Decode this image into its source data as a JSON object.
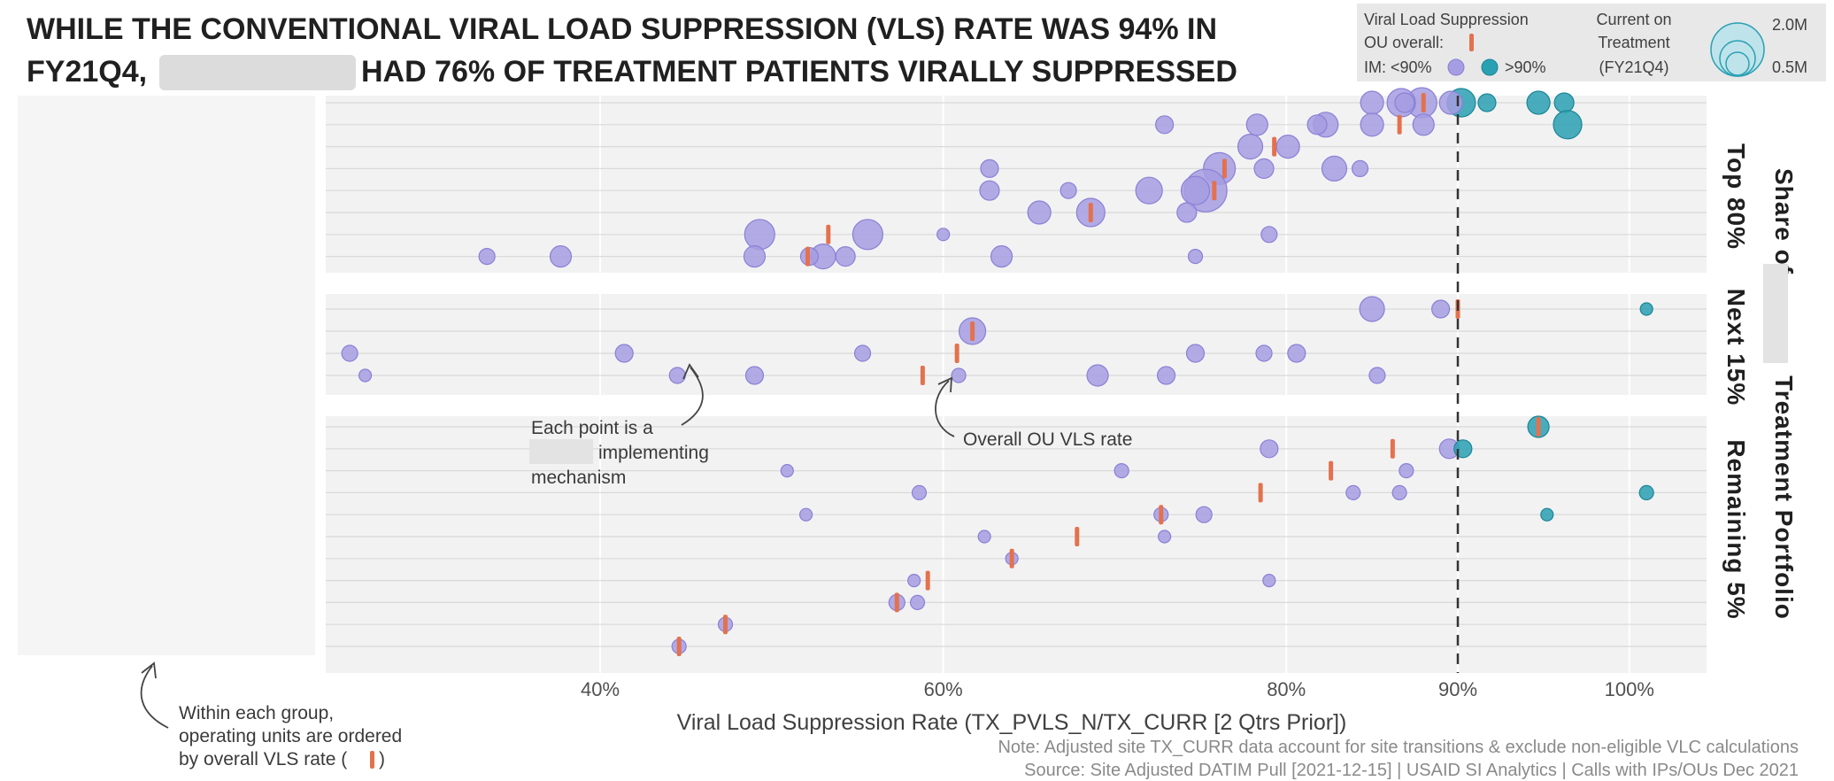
{
  "title": {
    "line1": "WHILE THE CONVENTIONAL VIRAL LOAD SUPPRESSION (VLS) RATE WAS 94% IN",
    "line2_a": "FY21Q4,",
    "line2_b": "HAD 76% OF TREATMENT PATIENTS VIRALLY SUPPRESSED"
  },
  "legend": {
    "vls_title": "Viral Load Suppression",
    "ou_overall": "OU overall:",
    "im_under": "IM: <90%",
    "im_over": ">90%",
    "size_title": [
      "Current on",
      "Treatment",
      "(FY21Q4)"
    ],
    "size_big": "2.0M",
    "size_small": "0.5M"
  },
  "facets": {
    "strip_prefix": "Share of",
    "strip_suffix": "Treatment Portfolio",
    "groups": [
      "Top 80%",
      "Next 15%",
      "Remaining 5%"
    ]
  },
  "annotations": {
    "point": [
      "Each point is a",
      "implementing",
      "mechanism"
    ],
    "ou_rate": "Overall OU VLS rate",
    "ordering": [
      "Within each group,",
      "operating units are ordered",
      "by overall VLS rate ("
    ]
  },
  "notes": {
    "note": "Note: Adjusted site TX_CURR data account for site transitions & exclude non-eligible VLC calculations",
    "source": "Source: Site Adjusted DATIM Pull [2021-12-15] | USAID SI Analytics | Calls with IPs/OUs Dec 2021"
  },
  "colors": {
    "under90": "#a69ee2",
    "under90_stroke": "#8a80d6",
    "over90": "#2aa0b3",
    "over90_stroke": "#1b8597",
    "ou_marker": "#e4714e",
    "panel_bg": "#f2f2f2",
    "grid": "#ffffff",
    "threshold_line": "#333333",
    "blur_box": "#dcdcdc"
  },
  "chart_data": {
    "type": "scatter",
    "title": "",
    "xlabel": "Viral Load Suppression Rate (TX_PVLS_N/TX_CURR [2 Qtrs Prior])",
    "ylabel": "",
    "xlim": [
      0.24,
      1.045
    ],
    "x_ticks": [
      {
        "value": 0.4,
        "label": "40%"
      },
      {
        "value": 0.6,
        "label": "60%"
      },
      {
        "value": 0.8,
        "label": "80%"
      },
      {
        "value": 0.9,
        "label": "90%"
      },
      {
        "value": 1.0,
        "label": "100%"
      }
    ],
    "threshold": 0.9,
    "panels": [
      {
        "name": "Top 80%",
        "rows": [
          {
            "ou_vls": 0.88,
            "ims": [
              [
                0.85,
                13
              ],
              [
                0.867,
                16
              ],
              [
                0.869,
                11
              ],
              [
                0.879,
                17
              ],
              [
                0.896,
                13
              ],
              [
                0.902,
                16
              ],
              [
                0.917,
                10
              ],
              [
                0.947,
                13
              ],
              [
                0.962,
                11
              ]
            ]
          },
          {
            "ou_vls": 0.866,
            "ims": [
              [
                0.729,
                10
              ],
              [
                0.783,
                12
              ],
              [
                0.818,
                11
              ],
              [
                0.823,
                14
              ],
              [
                0.85,
                13
              ],
              [
                0.88,
                12
              ],
              [
                0.964,
                16
              ]
            ]
          },
          {
            "ou_vls": 0.793,
            "ims": [
              [
                0.779,
                14
              ],
              [
                0.801,
                13
              ]
            ]
          },
          {
            "ou_vls": 0.764,
            "ims": [
              [
                0.627,
                10
              ],
              [
                0.761,
                18
              ],
              [
                0.787,
                11
              ],
              [
                0.828,
                14
              ],
              [
                0.843,
                9
              ]
            ]
          },
          {
            "ou_vls": 0.758,
            "ims": [
              [
                0.627,
                11
              ],
              [
                0.673,
                9
              ],
              [
                0.72,
                15
              ],
              [
                0.753,
                24
              ],
              [
                0.747,
                16
              ]
            ]
          },
          {
            "ou_vls": 0.686,
            "ims": [
              [
                0.656,
                13
              ],
              [
                0.686,
                16
              ],
              [
                0.742,
                11
              ]
            ]
          },
          {
            "ou_vls": 0.533,
            "ims": [
              [
                0.493,
                17
              ],
              [
                0.556,
                17
              ],
              [
                0.6,
                7
              ],
              [
                0.79,
                9
              ]
            ]
          },
          {
            "ou_vls": 0.521,
            "ims": [
              [
                0.334,
                9
              ],
              [
                0.377,
                12
              ],
              [
                0.49,
                12
              ],
              [
                0.522,
                10
              ],
              [
                0.53,
                14
              ],
              [
                0.543,
                11
              ],
              [
                0.634,
                12
              ],
              [
                0.747,
                8
              ]
            ]
          }
        ]
      },
      {
        "name": "Next 15%",
        "rows": [
          {
            "ou_vls": 0.9,
            "ims": [
              [
                0.85,
                14
              ],
              [
                0.89,
                10
              ],
              [
                1.01,
                7
              ]
            ]
          },
          {
            "ou_vls": 0.617,
            "ims": [
              [
                0.617,
                15
              ]
            ]
          },
          {
            "ou_vls": 0.608,
            "ims": [
              [
                0.254,
                9
              ],
              [
                0.414,
                10
              ],
              [
                0.553,
                9
              ],
              [
                0.747,
                10
              ],
              [
                0.787,
                9
              ],
              [
                0.806,
                10
              ]
            ]
          },
          {
            "ou_vls": 0.588,
            "ims": [
              [
                0.263,
                7
              ],
              [
                0.445,
                9
              ],
              [
                0.49,
                10
              ],
              [
                0.609,
                8
              ],
              [
                0.69,
                12
              ],
              [
                0.73,
                10
              ],
              [
                0.853,
                9
              ]
            ]
          }
        ]
      },
      {
        "name": "Remaining 5%",
        "rows": [
          {
            "ou_vls": 0.947,
            "ims": [
              [
                0.947,
                12
              ]
            ]
          },
          {
            "ou_vls": 0.862,
            "ims": [
              [
                0.79,
                10
              ],
              [
                0.895,
                11
              ],
              [
                0.903,
                10
              ]
            ]
          },
          {
            "ou_vls": 0.826,
            "ims": [
              [
                0.509,
                7
              ],
              [
                0.704,
                8
              ],
              [
                0.87,
                8
              ]
            ]
          },
          {
            "ou_vls": 0.785,
            "ims": [
              [
                0.586,
                8
              ],
              [
                0.839,
                8
              ],
              [
                0.866,
                8
              ],
              [
                1.01,
                8
              ]
            ]
          },
          {
            "ou_vls": 0.727,
            "ims": [
              [
                0.52,
                7
              ],
              [
                0.727,
                8
              ],
              [
                0.752,
                9
              ],
              [
                0.952,
                7
              ]
            ]
          },
          {
            "ou_vls": 0.678,
            "ims": [
              [
                0.624,
                7
              ],
              [
                0.729,
                7
              ]
            ]
          },
          {
            "ou_vls": 0.64,
            "ims": [
              [
                0.64,
                7
              ]
            ]
          },
          {
            "ou_vls": 0.591,
            "ims": [
              [
                0.583,
                7
              ],
              [
                0.79,
                7
              ]
            ]
          },
          {
            "ou_vls": 0.573,
            "ims": [
              [
                0.573,
                9
              ],
              [
                0.585,
                8
              ]
            ]
          },
          {
            "ou_vls": 0.473,
            "ims": [
              [
                0.473,
                8
              ]
            ]
          },
          {
            "ou_vls": 0.446,
            "ims": [
              [
                0.446,
                8
              ]
            ]
          }
        ]
      }
    ]
  }
}
